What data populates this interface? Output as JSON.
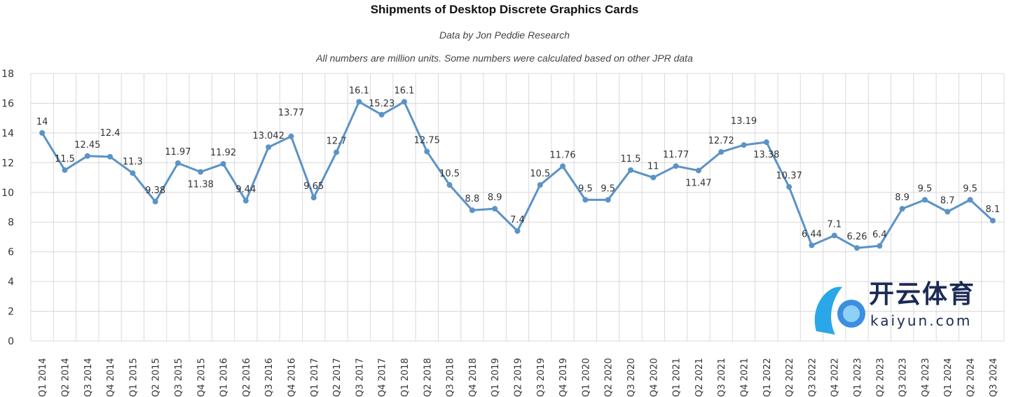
{
  "chart_data": {
    "type": "line",
    "title": "Shipments of Desktop Discrete Graphics Cards",
    "subtitle": "Data by Jon Peddie Research",
    "note": "All numbers are million units. Some numbers were calculated based on other JPR data",
    "xlabel": "",
    "ylabel": "",
    "ylim": [
      0,
      18
    ],
    "yticks": [
      0,
      2,
      4,
      6,
      8,
      10,
      12,
      14,
      16,
      18
    ],
    "grid": true,
    "categories": [
      "Q1 2014",
      "Q2 2014",
      "Q3 2014",
      "Q4 2014",
      "Q1 2015",
      "Q2 2015",
      "Q3 2015",
      "Q4 2015",
      "Q1 2016",
      "Q2 2016",
      "Q3 2016",
      "Q4 2016",
      "Q1 2017",
      "Q2 2017",
      "Q3 2017",
      "Q4 2017",
      "Q1 2018",
      "Q2 2018",
      "Q3 2018",
      "Q4 2018",
      "Q1 2019",
      "Q2 2019",
      "Q3 2019",
      "Q4 2019",
      "Q1 2020",
      "Q2 2020",
      "Q3 2020",
      "Q4 2020",
      "Q1 2021",
      "Q2 2021",
      "Q3 2021",
      "Q4 2021",
      "Q1 2022",
      "Q2 2022",
      "Q3 2022",
      "Q4 2022",
      "Q1 2023",
      "Q2 2023",
      "Q3 2023",
      "Q4 2023",
      "Q1 2024",
      "Q2 2024",
      "Q3 2024"
    ],
    "series": [
      {
        "name": "Shipments",
        "color": "#5b93c6",
        "values": [
          14,
          11.5,
          12.45,
          12.4,
          11.3,
          9.38,
          11.97,
          11.38,
          11.92,
          9.44,
          13.042,
          13.77,
          9.65,
          12.7,
          16.1,
          15.23,
          16.1,
          12.75,
          10.5,
          8.8,
          8.9,
          7.4,
          10.5,
          11.76,
          9.5,
          9.5,
          11.5,
          11,
          11.77,
          11.47,
          12.72,
          13.19,
          13.38,
          10.37,
          6.44,
          7.1,
          6.26,
          6.4,
          8.9,
          9.5,
          8.7,
          9.5,
          8.1
        ],
        "labels": [
          "14",
          "11.5",
          "12.45",
          "12.4",
          "11.3",
          "9.38",
          "11.97",
          "11.38",
          "11.92",
          "9.44",
          "13.042",
          "13.77",
          "9.65",
          "12.7",
          "16.1",
          "15.23",
          "16.1",
          "12.75",
          "10.5",
          "8.8",
          "8.9",
          "7.4",
          "10.5",
          "11.76",
          "9.5",
          "9.5",
          "11.5",
          "11",
          "11.77",
          "11.47",
          "12.72",
          "13.19",
          "13.38",
          "10.37",
          "6.44",
          "7.1",
          "6.26",
          "6.4",
          "8.9",
          "9.5",
          "8.7",
          "9.5",
          "8.1"
        ]
      }
    ]
  },
  "watermark": {
    "cn": "开云体育",
    "en": "kaiyun.com"
  }
}
